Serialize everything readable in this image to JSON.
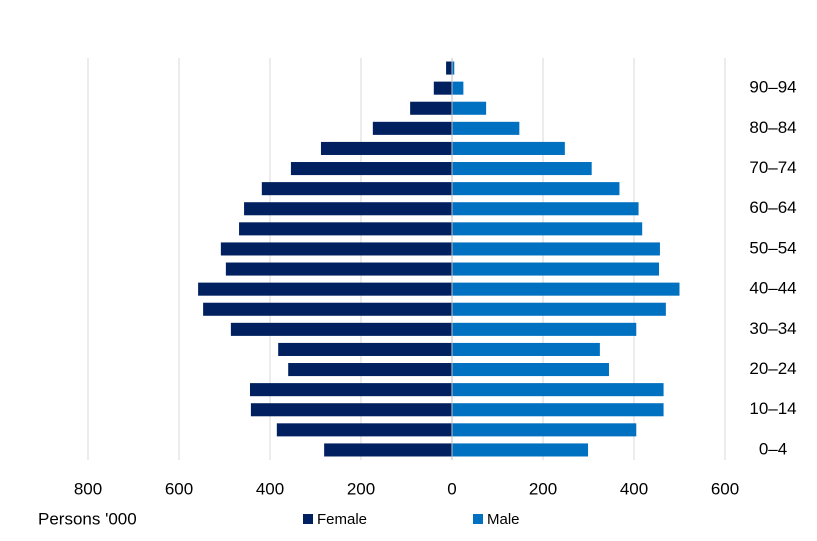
{
  "chart_data": {
    "type": "pyramid",
    "x_label": "Persons '000",
    "categories": [
      "0–4",
      null,
      "10–14",
      null,
      "20–24",
      null,
      "30–34",
      null,
      "40–44",
      null,
      "50–54",
      null,
      "60–64",
      null,
      "70–74",
      null,
      "80–84",
      null,
      "90–94",
      null
    ],
    "series": [
      {
        "name": "Female",
        "color": "#002060",
        "values": [
          281,
          385,
          442,
          444,
          360,
          382,
          486,
          547,
          558,
          497,
          508,
          468,
          457,
          418,
          354,
          288,
          174,
          92,
          40,
          13
        ]
      },
      {
        "name": "Male",
        "color": "#0070c0",
        "values": [
          299,
          405,
          465,
          465,
          345,
          325,
          405,
          470,
          500,
          455,
          457,
          418,
          410,
          368,
          307,
          248,
          148,
          75,
          25,
          5
        ]
      }
    ],
    "xlim": [
      -800,
      600
    ],
    "xticks": [
      {
        "value": -800,
        "label": "800"
      },
      {
        "value": -600,
        "label": "600"
      },
      {
        "value": -400,
        "label": "400"
      },
      {
        "value": -200,
        "label": "200"
      },
      0,
      200,
      400,
      600
    ],
    "grid": true
  }
}
